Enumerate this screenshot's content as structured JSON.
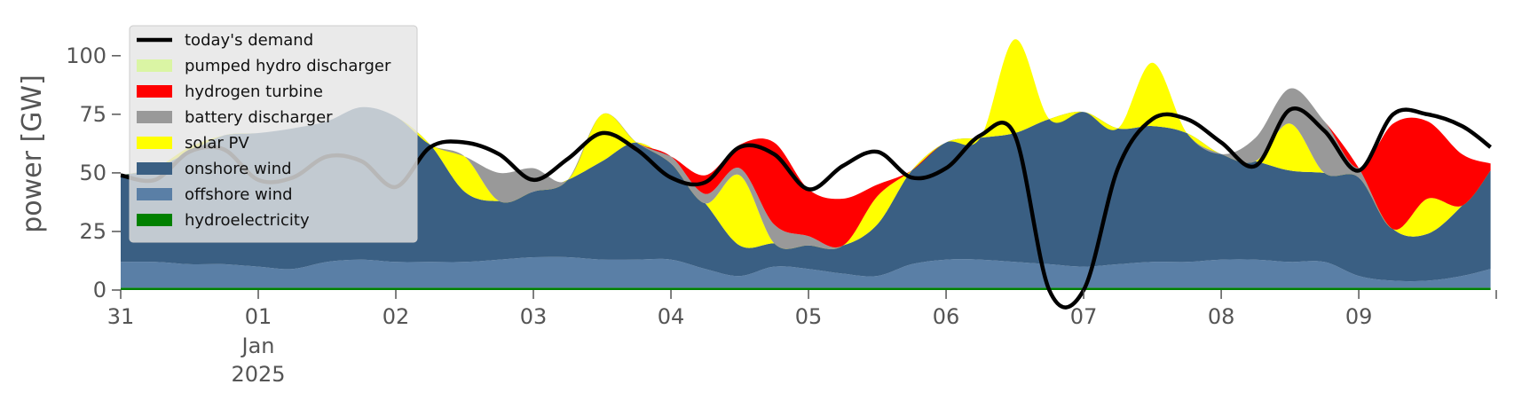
{
  "chart_data": {
    "type": "area",
    "ylabel": "power [GW]",
    "ylim": [
      0,
      120
    ],
    "xlim": [
      "2024-12-31T00:00",
      "2025-01-09T23:59"
    ],
    "y_ticks": [
      0,
      25,
      50,
      75,
      100
    ],
    "x_ticks": [
      {
        "date": "2024-12-31",
        "label": "31",
        "sub": []
      },
      {
        "date": "2025-01-01",
        "label": "01",
        "sub": [
          "Jan",
          "2025"
        ]
      },
      {
        "date": "2025-01-02",
        "label": "02",
        "sub": []
      },
      {
        "date": "2025-01-03",
        "label": "03",
        "sub": []
      },
      {
        "date": "2025-01-04",
        "label": "04",
        "sub": []
      },
      {
        "date": "2025-01-05",
        "label": "05",
        "sub": []
      },
      {
        "date": "2025-01-06",
        "label": "06",
        "sub": []
      },
      {
        "date": "2025-01-07",
        "label": "07",
        "sub": []
      },
      {
        "date": "2025-01-08",
        "label": "08",
        "sub": []
      },
      {
        "date": "2025-01-09",
        "label": "09",
        "sub": []
      }
    ],
    "legend_position": "top-left",
    "x": [
      "2024-12-31T00:00",
      "2024-12-31T06:00",
      "2024-12-31T12:00",
      "2024-12-31T18:00",
      "2025-01-01T00:00",
      "2025-01-01T06:00",
      "2025-01-01T12:00",
      "2025-01-01T18:00",
      "2025-01-02T00:00",
      "2025-01-02T06:00",
      "2025-01-02T12:00",
      "2025-01-02T18:00",
      "2025-01-03T00:00",
      "2025-01-03T06:00",
      "2025-01-03T12:00",
      "2025-01-03T18:00",
      "2025-01-04T00:00",
      "2025-01-04T06:00",
      "2025-01-04T12:00",
      "2025-01-04T18:00",
      "2025-01-05T00:00",
      "2025-01-05T06:00",
      "2025-01-05T12:00",
      "2025-01-05T18:00",
      "2025-01-06T00:00",
      "2025-01-06T06:00",
      "2025-01-06T12:00",
      "2025-01-06T18:00",
      "2025-01-07T00:00",
      "2025-01-07T06:00",
      "2025-01-07T12:00",
      "2025-01-07T18:00",
      "2025-01-08T00:00",
      "2025-01-08T06:00",
      "2025-01-08T12:00",
      "2025-01-08T18:00",
      "2025-01-09T00:00",
      "2025-01-09T06:00",
      "2025-01-09T12:00",
      "2025-01-09T18:00",
      "2025-01-09T23:00"
    ],
    "stack_series": [
      {
        "name": "hydroelectricity",
        "color": "#008000",
        "values": [
          1,
          1,
          1,
          1,
          1,
          1,
          1,
          1,
          1,
          1,
          1,
          1,
          1,
          1,
          1,
          1,
          1,
          1,
          1,
          1,
          1,
          1,
          1,
          1,
          1,
          1,
          1,
          1,
          1,
          1,
          1,
          1,
          1,
          1,
          1,
          1,
          1,
          1,
          1,
          1,
          1
        ]
      },
      {
        "name": "offshore wind",
        "color": "#5a7fa6",
        "values": [
          11,
          11,
          10,
          10,
          9,
          8,
          11,
          12,
          11,
          11,
          11,
          12,
          13,
          13,
          12,
          12,
          12,
          8,
          5,
          9,
          8,
          6,
          5,
          10,
          12,
          12,
          11,
          10,
          9,
          10,
          11,
          11,
          12,
          12,
          11,
          11,
          5,
          3,
          3,
          5,
          8
        ]
      },
      {
        "name": "onshore wind",
        "color": "#3a5f83",
        "values": [
          37,
          40,
          48,
          55,
          57,
          60,
          60,
          65,
          62,
          50,
          30,
          25,
          28,
          33,
          42,
          50,
          41,
          28,
          13,
          10,
          10,
          12,
          22,
          40,
          50,
          52,
          55,
          62,
          66,
          58,
          58,
          55,
          45,
          42,
          39,
          38,
          42,
          22,
          20,
          30,
          42
        ]
      },
      {
        "name": "solar PV",
        "color": "#ffff00",
        "values": [
          0,
          0,
          2,
          0,
          0,
          0,
          0,
          0,
          0,
          0,
          15,
          0,
          0,
          0,
          20,
          0,
          0,
          0,
          30,
          0,
          0,
          0,
          12,
          0,
          0,
          0,
          40,
          0,
          0,
          0,
          27,
          0,
          0,
          0,
          20,
          0,
          0,
          0,
          15,
          0,
          0
        ]
      },
      {
        "name": "battery discharger",
        "color": "#999999",
        "values": [
          0,
          0,
          0,
          0,
          0,
          0,
          0,
          0,
          0,
          0,
          0,
          12,
          10,
          0,
          0,
          0,
          3,
          4,
          3,
          8,
          4,
          0,
          0,
          0,
          0,
          0,
          0,
          0,
          0,
          0,
          0,
          0,
          0,
          10,
          15,
          22,
          4,
          0,
          0,
          0,
          0
        ]
      },
      {
        "name": "hydrogen turbine",
        "color": "#ff0000",
        "values": [
          0,
          0,
          0,
          0,
          0,
          0,
          0,
          0,
          0,
          0,
          0,
          0,
          0,
          0,
          0,
          0,
          0,
          8,
          10,
          35,
          20,
          20,
          5,
          0,
          0,
          0,
          0,
          0,
          0,
          0,
          0,
          0,
          0,
          0,
          0,
          0,
          0,
          45,
          33,
          22,
          3
        ]
      },
      {
        "name": "pumped hydro discharger",
        "color": "#daf5a4",
        "values": [
          0,
          0,
          0,
          0,
          0,
          0,
          0,
          0,
          0,
          0,
          0,
          0,
          0,
          0,
          0,
          0,
          0,
          0,
          0,
          0,
          0,
          0,
          0,
          0,
          0,
          0,
          0,
          0,
          0,
          0,
          0,
          0,
          0,
          0,
          0,
          0,
          0,
          0,
          0,
          0,
          0
        ]
      }
    ],
    "line_series": {
      "name": "today's demand",
      "color": "#000000",
      "values": [
        49,
        47,
        59,
        60,
        47,
        48,
        57,
        55,
        44,
        61,
        63,
        58,
        47,
        56,
        67,
        60,
        48,
        46,
        61,
        58,
        43,
        53,
        59,
        48,
        52,
        66,
        66,
        0,
        0,
        52,
        73,
        73,
        63,
        53,
        77,
        68,
        51,
        75,
        75,
        70,
        61
      ]
    },
    "legend": [
      {
        "label": "today's demand",
        "kind": "line",
        "color": "#000000"
      },
      {
        "label": "pumped hydro discharger",
        "kind": "patch",
        "color": "#daf5a4"
      },
      {
        "label": "hydrogen turbine",
        "kind": "patch",
        "color": "#ff0000"
      },
      {
        "label": "battery discharger",
        "kind": "patch",
        "color": "#999999"
      },
      {
        "label": "solar PV",
        "kind": "patch",
        "color": "#ffff00"
      },
      {
        "label": "onshore wind",
        "kind": "patch",
        "color": "#3a5f83"
      },
      {
        "label": "offshore wind",
        "kind": "patch",
        "color": "#5a7fa6"
      },
      {
        "label": "hydroelectricity",
        "kind": "patch",
        "color": "#008000"
      }
    ]
  }
}
